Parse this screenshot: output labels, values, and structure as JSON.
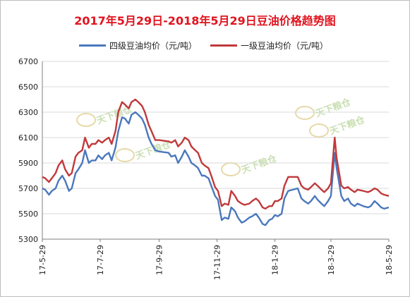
{
  "chart_data": {
    "type": "line",
    "title": "2017年5月29日-2018年5月29日豆油价格趋势图",
    "ylim": [
      5300,
      6700
    ],
    "y_ticks": [
      5300,
      5500,
      5700,
      5900,
      6100,
      6300,
      6500,
      6700
    ],
    "x_ticks": [
      "17-5-29",
      "17-7-29",
      "17-9-29",
      "17-11-29",
      "18-1-29",
      "18-3-29",
      "18-5-29"
    ],
    "xlim": [
      "2017-05-29",
      "2018-05-29"
    ],
    "grid": "horizontal",
    "legend_position": "top",
    "watermark": "天下粮仓",
    "series": [
      {
        "name": "四级豆油均价（元/吨）",
        "color": "#4a78bd",
        "x": [
          "2017-05-29",
          "2017-06-01",
          "2017-06-05",
          "2017-06-08",
          "2017-06-12",
          "2017-06-15",
          "2017-06-19",
          "2017-06-22",
          "2017-06-26",
          "2017-06-29",
          "2017-07-03",
          "2017-07-06",
          "2017-07-10",
          "2017-07-13",
          "2017-07-17",
          "2017-07-20",
          "2017-07-24",
          "2017-07-27",
          "2017-07-31",
          "2017-08-03",
          "2017-08-07",
          "2017-08-10",
          "2017-08-14",
          "2017-08-17",
          "2017-08-21",
          "2017-08-24",
          "2017-08-28",
          "2017-08-31",
          "2017-09-04",
          "2017-09-07",
          "2017-09-11",
          "2017-09-14",
          "2017-09-18",
          "2017-09-21",
          "2017-09-25",
          "2017-09-29",
          "2017-10-09",
          "2017-10-12",
          "2017-10-16",
          "2017-10-19",
          "2017-10-23",
          "2017-10-26",
          "2017-10-30",
          "2017-11-02",
          "2017-11-06",
          "2017-11-09",
          "2017-11-13",
          "2017-11-16",
          "2017-11-20",
          "2017-11-23",
          "2017-11-27",
          "2017-11-30",
          "2017-12-04",
          "2017-12-07",
          "2017-12-11",
          "2017-12-14",
          "2017-12-18",
          "2017-12-21",
          "2017-12-25",
          "2017-12-28",
          "2018-01-02",
          "2018-01-05",
          "2018-01-09",
          "2018-01-12",
          "2018-01-16",
          "2018-01-19",
          "2018-01-23",
          "2018-01-26",
          "2018-01-29",
          "2018-02-01",
          "2018-02-05",
          "2018-02-08",
          "2018-02-12",
          "2018-02-22",
          "2018-02-26",
          "2018-03-01",
          "2018-03-05",
          "2018-03-08",
          "2018-03-12",
          "2018-03-15",
          "2018-03-19",
          "2018-03-22",
          "2018-03-26",
          "2018-03-29",
          "2018-04-02",
          "2018-04-04",
          "2018-04-09",
          "2018-04-12",
          "2018-04-16",
          "2018-04-19",
          "2018-04-23",
          "2018-04-26",
          "2018-05-02",
          "2018-05-07",
          "2018-05-10",
          "2018-05-14",
          "2018-05-17",
          "2018-05-21",
          "2018-05-24",
          "2018-05-29"
        ],
        "values": [
          5700,
          5690,
          5650,
          5680,
          5700,
          5760,
          5800,
          5760,
          5680,
          5700,
          5820,
          5850,
          5900,
          6000,
          5900,
          5920,
          5920,
          5960,
          5930,
          5960,
          5980,
          5920,
          6020,
          6150,
          6260,
          6250,
          6210,
          6280,
          6300,
          6280,
          6250,
          6200,
          6100,
          6050,
          6000,
          5990,
          5980,
          5950,
          5960,
          5900,
          5950,
          6000,
          5950,
          5900,
          5880,
          5860,
          5800,
          5800,
          5780,
          5720,
          5640,
          5610,
          5450,
          5470,
          5460,
          5550,
          5520,
          5470,
          5430,
          5440,
          5470,
          5480,
          5500,
          5470,
          5420,
          5410,
          5450,
          5460,
          5490,
          5480,
          5500,
          5620,
          5680,
          5700,
          5620,
          5600,
          5580,
          5600,
          5640,
          5610,
          5580,
          5560,
          5600,
          5640,
          5980,
          5860,
          5640,
          5600,
          5620,
          5580,
          5560,
          5580,
          5560,
          5550,
          5560,
          5600,
          5580,
          5550,
          5540,
          5550
        ]
      },
      {
        "name": "一级豆油均价（元/吨）",
        "color": "#c0393b",
        "x": [
          "2017-05-29",
          "2017-06-01",
          "2017-06-05",
          "2017-06-08",
          "2017-06-12",
          "2017-06-15",
          "2017-06-19",
          "2017-06-22",
          "2017-06-26",
          "2017-06-29",
          "2017-07-03",
          "2017-07-06",
          "2017-07-10",
          "2017-07-13",
          "2017-07-17",
          "2017-07-20",
          "2017-07-24",
          "2017-07-27",
          "2017-07-31",
          "2017-08-03",
          "2017-08-07",
          "2017-08-10",
          "2017-08-14",
          "2017-08-17",
          "2017-08-21",
          "2017-08-24",
          "2017-08-28",
          "2017-08-31",
          "2017-09-04",
          "2017-09-07",
          "2017-09-11",
          "2017-09-14",
          "2017-09-18",
          "2017-09-21",
          "2017-09-25",
          "2017-09-29",
          "2017-10-09",
          "2017-10-12",
          "2017-10-16",
          "2017-10-19",
          "2017-10-23",
          "2017-10-26",
          "2017-10-30",
          "2017-11-02",
          "2017-11-06",
          "2017-11-09",
          "2017-11-13",
          "2017-11-16",
          "2017-11-20",
          "2017-11-23",
          "2017-11-27",
          "2017-11-30",
          "2017-12-04",
          "2017-12-07",
          "2017-12-11",
          "2017-12-14",
          "2017-12-18",
          "2017-12-21",
          "2017-12-25",
          "2017-12-28",
          "2018-01-02",
          "2018-01-05",
          "2018-01-09",
          "2018-01-12",
          "2018-01-16",
          "2018-01-19",
          "2018-01-23",
          "2018-01-26",
          "2018-01-29",
          "2018-02-01",
          "2018-02-05",
          "2018-02-08",
          "2018-02-12",
          "2018-02-22",
          "2018-02-26",
          "2018-03-01",
          "2018-03-05",
          "2018-03-08",
          "2018-03-12",
          "2018-03-15",
          "2018-03-19",
          "2018-03-22",
          "2018-03-26",
          "2018-03-29",
          "2018-04-02",
          "2018-04-04",
          "2018-04-09",
          "2018-04-12",
          "2018-04-16",
          "2018-04-19",
          "2018-04-23",
          "2018-04-26",
          "2018-05-02",
          "2018-05-07",
          "2018-05-10",
          "2018-05-14",
          "2018-05-17",
          "2018-05-21",
          "2018-05-24",
          "2018-05-29"
        ],
        "values": [
          5790,
          5780,
          5750,
          5780,
          5820,
          5880,
          5920,
          5850,
          5800,
          5820,
          5950,
          5980,
          6000,
          6100,
          6020,
          6050,
          6050,
          6080,
          6060,
          6080,
          6100,
          6050,
          6150,
          6300,
          6380,
          6360,
          6330,
          6380,
          6400,
          6380,
          6350,
          6300,
          6200,
          6150,
          6080,
          6080,
          6070,
          6060,
          6080,
          6030,
          6060,
          6100,
          6080,
          6030,
          6000,
          5980,
          5900,
          5880,
          5860,
          5800,
          5710,
          5680,
          5560,
          5580,
          5570,
          5680,
          5640,
          5600,
          5580,
          5570,
          5580,
          5600,
          5620,
          5600,
          5550,
          5540,
          5560,
          5560,
          5600,
          5600,
          5620,
          5720,
          5790,
          5790,
          5720,
          5700,
          5690,
          5710,
          5740,
          5720,
          5690,
          5670,
          5700,
          5740,
          6100,
          5940,
          5720,
          5700,
          5710,
          5690,
          5670,
          5690,
          5680,
          5670,
          5680,
          5700,
          5690,
          5660,
          5650,
          5640
        ]
      }
    ]
  }
}
